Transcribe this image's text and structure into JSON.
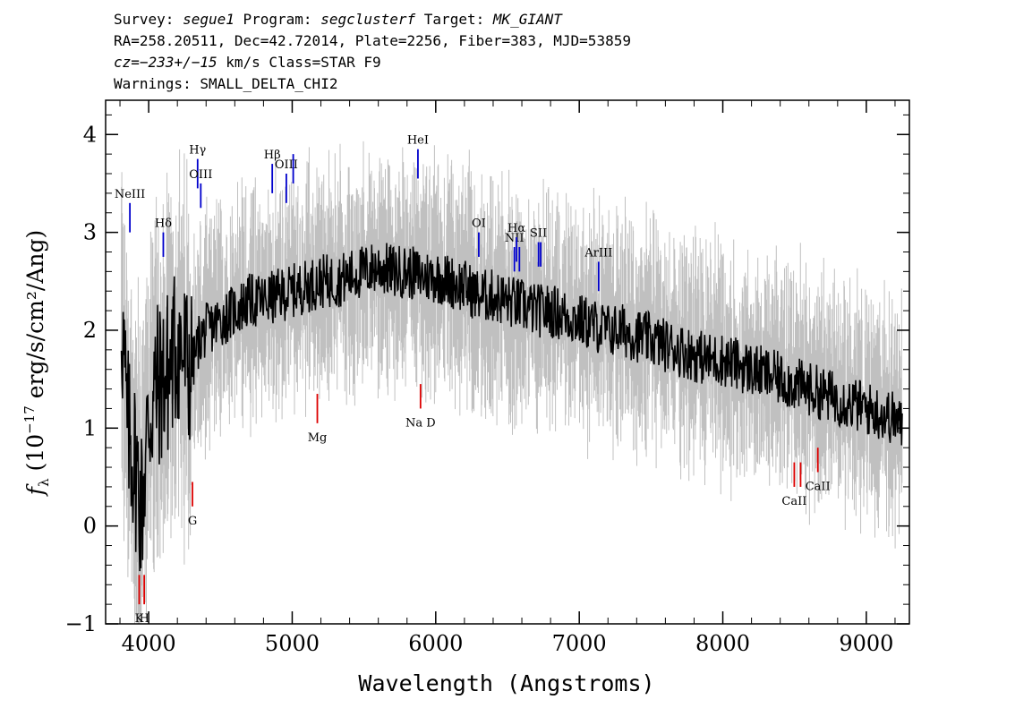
{
  "header": {
    "survey_label": "Survey: ",
    "survey": "segue1",
    "program_label": " Program: ",
    "program": "segclusterf",
    "target_label": " Target: ",
    "target": "MK_GIANT",
    "coords": "RA=258.20511, Dec=42.72014, Plate=2256, Fiber=383, MJD=53859",
    "cz_label": "cz=",
    "cz_value": "−233+/−15",
    "cz_units": " km/s Class=STAR F9",
    "warnings": "Warnings: SMALL_DELTA_CHI2"
  },
  "chart_data": {
    "type": "line",
    "xlabel": "Wavelength (Angstroms)",
    "ylabel_pre": "f",
    "ylabel_sub": "λ",
    "ylabel_main": " (10",
    "ylabel_exp": "−17",
    "ylabel_post": " erg/s/cm²/Ang)",
    "xlim": [
      3700,
      9300
    ],
    "ylim": [
      -1.0,
      4.35
    ],
    "xticks": [
      4000,
      5000,
      6000,
      7000,
      8000,
      9000
    ],
    "yticks": [
      -1,
      0,
      1,
      2,
      3,
      4
    ],
    "series": [
      {
        "role": "smoothed spectrum",
        "color": "#000000",
        "x": [
          3810,
          3850,
          3900,
          3950,
          4000,
          4050,
          4100,
          4150,
          4200,
          4250,
          4300,
          4350,
          4400,
          4450,
          4500,
          4600,
          4700,
          4800,
          4900,
          5000,
          5100,
          5200,
          5300,
          5400,
          5500,
          5600,
          5700,
          5800,
          5900,
          6000,
          6100,
          6200,
          6300,
          6400,
          6500,
          6600,
          6700,
          6800,
          6900,
          7000,
          7100,
          7200,
          7300,
          7400,
          7500,
          7600,
          7700,
          7800,
          7900,
          8000,
          8100,
          8200,
          8300,
          8400,
          8500,
          8600,
          8700,
          8800,
          8900,
          9000,
          9100,
          9200,
          9250
        ],
        "y": [
          2.2,
          1.0,
          0.7,
          0.2,
          1.1,
          1.4,
          1.5,
          1.6,
          1.9,
          1.7,
          1.6,
          1.9,
          2.0,
          2.05,
          2.1,
          2.2,
          2.3,
          2.3,
          2.35,
          2.4,
          2.45,
          2.5,
          2.5,
          2.55,
          2.6,
          2.65,
          2.6,
          2.6,
          2.55,
          2.55,
          2.5,
          2.45,
          2.35,
          2.35,
          2.3,
          2.25,
          2.2,
          2.2,
          2.15,
          2.1,
          2.05,
          2.0,
          2.0,
          1.95,
          1.9,
          1.85,
          1.8,
          1.75,
          1.7,
          1.7,
          1.65,
          1.6,
          1.55,
          1.5,
          1.45,
          1.4,
          1.35,
          1.3,
          1.25,
          1.2,
          1.15,
          1.1,
          1.0
        ]
      }
    ],
    "emission_lines": [
      {
        "label": "NeIII",
        "x": 3869,
        "y0": 3.0,
        "y1": 3.3
      },
      {
        "label": "Hδ",
        "x": 4102,
        "y0": 2.75,
        "y1": 3.0
      },
      {
        "label": "Hγ",
        "x": 4341,
        "y0": 3.45,
        "y1": 3.75
      },
      {
        "label": "OIII",
        "x": 4363,
        "y0": 3.25,
        "y1": 3.5
      },
      {
        "label": "Hβ",
        "x": 4861,
        "y0": 3.4,
        "y1": 3.7
      },
      {
        "label": "OIII",
        "x": 4959,
        "y0": 3.3,
        "y1": 3.6
      },
      {
        "label": "OIII",
        "x": 5007,
        "y0": 3.5,
        "y1": 3.8
      },
      {
        "label": "HeI",
        "x": 5876,
        "y0": 3.55,
        "y1": 3.85
      },
      {
        "label": "OI",
        "x": 6300,
        "y0": 2.75,
        "y1": 3.0
      },
      {
        "label": "NII",
        "x": 6548,
        "y0": 2.6,
        "y1": 2.85
      },
      {
        "label": "Hα",
        "x": 6563,
        "y0": 2.7,
        "y1": 2.95
      },
      {
        "label": "NII",
        "x": 6583,
        "y0": 2.6,
        "y1": 2.85
      },
      {
        "label": "SII",
        "x": 6716,
        "y0": 2.65,
        "y1": 2.9
      },
      {
        "label": "SII",
        "x": 6731,
        "y0": 2.65,
        "y1": 2.9
      },
      {
        "label": "ArIII",
        "x": 7135,
        "y0": 2.4,
        "y1": 2.7
      }
    ],
    "absorption_lines": [
      {
        "label": "K",
        "x": 3934,
        "y0": -0.8,
        "y1": -0.5
      },
      {
        "label": "H",
        "x": 3969,
        "y0": -0.8,
        "y1": -0.5
      },
      {
        "label": "G",
        "x": 4305,
        "y0": 0.2,
        "y1": 0.45
      },
      {
        "label": "Mg",
        "x": 5175,
        "y0": 1.05,
        "y1": 1.35
      },
      {
        "label": "Na D",
        "x": 5894,
        "y0": 1.2,
        "y1": 1.45
      },
      {
        "label": "CaII",
        "x": 8498,
        "y0": 0.4,
        "y1": 0.65
      },
      {
        "label": "CaII",
        "x": 8542,
        "y0": 0.4,
        "y1": 0.65
      },
      {
        "label": "CaII",
        "x": 8662,
        "y0": 0.55,
        "y1": 0.8
      }
    ],
    "line_labels": {
      "emission": [
        "NeIII",
        "Hδ",
        "Hγ",
        "OIII",
        "Hβ",
        "OIII",
        "HeI",
        "OI",
        "NII",
        "Hα",
        "NII",
        "SII"
      ],
      "emission_extra": [
        "ArIII"
      ],
      "absorption": [
        "K",
        "H",
        "G",
        "Mg",
        "Na D",
        "CaII"
      ]
    },
    "colors": {
      "spectrum": "#000000",
      "noise": "#c0c0c0",
      "emission": "#0000cc",
      "absorption": "#dd0000"
    }
  }
}
